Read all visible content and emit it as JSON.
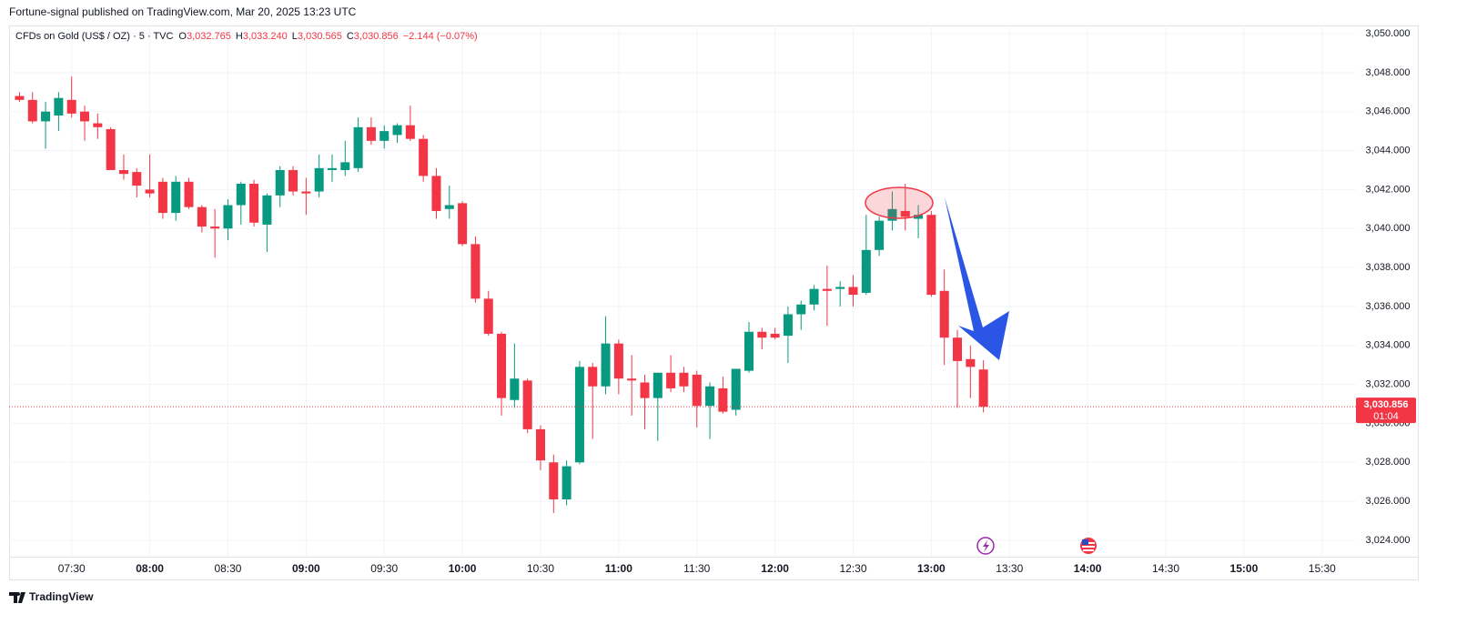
{
  "header": {
    "publisher": "Fortune-signal published on TradingView.com, Mar 20, 2025 13:23 UTC",
    "symbol": "CFDs on Gold (US$ / OZ) · 5 · TVC",
    "ohlc": [
      {
        "key": "O",
        "value": "3,032.765"
      },
      {
        "key": "H",
        "value": "3,033.240"
      },
      {
        "key": "L",
        "value": "3,030.565"
      },
      {
        "key": "C",
        "value": "3,030.856"
      }
    ],
    "change": "−2.144 (−0.07%)"
  },
  "footer": {
    "logo": "TradingView"
  },
  "chart_data": {
    "type": "candlestick",
    "up_color": "#089981",
    "down_color": "#f23645",
    "grid": true,
    "x": [
      "07:10",
      "07:15",
      "07:20",
      "07:25",
      "07:30",
      "07:35",
      "07:40",
      "07:45",
      "07:50",
      "07:55",
      "08:00",
      "08:05",
      "08:10",
      "08:15",
      "08:20",
      "08:25",
      "08:30",
      "08:35",
      "08:40",
      "08:45",
      "08:50",
      "08:55",
      "09:00",
      "09:05",
      "09:10",
      "09:15",
      "09:20",
      "09:25",
      "09:30",
      "09:35",
      "09:40",
      "09:45",
      "09:50",
      "09:55",
      "10:00",
      "10:05",
      "10:10",
      "10:15",
      "10:20",
      "10:25",
      "10:30",
      "10:35",
      "10:40",
      "10:45",
      "10:50",
      "10:55",
      "11:00",
      "11:05",
      "11:10",
      "11:15",
      "11:20",
      "11:25",
      "11:30",
      "11:35",
      "11:40",
      "11:45",
      "11:50",
      "11:55",
      "12:00",
      "12:05",
      "12:10",
      "12:15",
      "12:20",
      "12:25",
      "12:30",
      "12:35",
      "12:40",
      "12:45",
      "12:50",
      "12:55",
      "13:00",
      "13:05",
      "13:10",
      "13:15",
      "13:20"
    ],
    "open": [
      3046.8,
      3046.6,
      3045.5,
      3045.8,
      3046.6,
      3046.0,
      3045.4,
      3045.1,
      3043.0,
      3042.9,
      3042.0,
      3042.4,
      3040.8,
      3042.4,
      3041.1,
      3040.1,
      3040.0,
      3041.2,
      3042.3,
      3040.2,
      3041.7,
      3043.0,
      3041.9,
      3041.9,
      3043.0,
      3043.0,
      3043.1,
      3045.2,
      3044.5,
      3044.8,
      3045.3,
      3044.6,
      3042.7,
      3041.0,
      3041.3,
      3039.2,
      3036.4,
      3034.6,
      3031.2,
      3032.2,
      3029.7,
      3028.0,
      3026.1,
      3028.0,
      3032.9,
      3031.9,
      3034.1,
      3032.3,
      3032.1,
      3031.3,
      3032.6,
      3032.6,
      3032.5,
      3030.9,
      3031.8,
      3030.7,
      3032.7,
      3034.7,
      3034.6,
      3034.5,
      3035.6,
      3036.1,
      3036.9,
      3036.9,
      3037.0,
      3036.7,
      3038.9,
      3040.4,
      3040.9,
      3040.5,
      3040.7,
      3036.8,
      3034.4,
      3033.3,
      3032.765
    ],
    "high": [
      3047.0,
      3047.0,
      3046.5,
      3047.0,
      3047.8,
      3046.3,
      3045.9,
      3045.2,
      3043.8,
      3043.1,
      3043.8,
      3042.6,
      3042.7,
      3042.6,
      3041.2,
      3041.0,
      3041.5,
      3042.4,
      3042.5,
      3041.8,
      3043.2,
      3043.2,
      3042.6,
      3043.8,
      3043.8,
      3044.5,
      3045.7,
      3045.7,
      3045.3,
      3045.4,
      3046.3,
      3044.8,
      3043.1,
      3042.2,
      3041.4,
      3039.6,
      3036.8,
      3034.7,
      3034.1,
      3032.3,
      3029.9,
      3028.4,
      3028.1,
      3033.2,
      3033.1,
      3035.5,
      3034.3,
      3033.5,
      3032.5,
      3032.6,
      3033.5,
      3032.9,
      3032.7,
      3032.1,
      3032.4,
      3032.8,
      3035.2,
      3034.9,
      3034.9,
      3036.0,
      3036.3,
      3037.1,
      3038.1,
      3037.3,
      3037.6,
      3040.7,
      3040.6,
      3041.9,
      3042.3,
      3041.2,
      3040.9,
      3037.9,
      3034.8,
      3034.0,
      3033.24
    ],
    "low": [
      3046.5,
      3045.4,
      3044.1,
      3045.0,
      3045.7,
      3044.5,
      3044.6,
      3043.0,
      3042.5,
      3041.6,
      3041.6,
      3040.5,
      3040.4,
      3041.0,
      3039.8,
      3038.5,
      3039.4,
      3040.2,
      3040.1,
      3038.8,
      3041.1,
      3041.7,
      3040.7,
      3041.6,
      3042.4,
      3042.7,
      3042.9,
      3044.3,
      3044.1,
      3044.4,
      3044.5,
      3042.4,
      3040.5,
      3040.5,
      3039.1,
      3036.2,
      3034.5,
      3030.4,
      3030.8,
      3029.5,
      3027.6,
      3025.4,
      3025.8,
      3027.9,
      3029.2,
      3031.5,
      3031.5,
      3030.4,
      3029.7,
      3029.1,
      3031.6,
      3031.6,
      3029.8,
      3029.2,
      3030.5,
      3030.4,
      3032.6,
      3033.8,
      3034.3,
      3033.1,
      3034.8,
      3035.8,
      3035.0,
      3036.0,
      3036.0,
      3036.6,
      3038.6,
      3039.9,
      3039.9,
      3039.5,
      3036.5,
      3033.0,
      3030.8,
      3031.3,
      3030.565
    ],
    "close": [
      3046.6,
      3045.5,
      3046.0,
      3046.7,
      3045.9,
      3045.5,
      3045.2,
      3043.0,
      3042.8,
      3042.2,
      3041.8,
      3040.8,
      3042.4,
      3041.1,
      3040.1,
      3040.0,
      3041.2,
      3042.3,
      3040.3,
      3041.7,
      3043.0,
      3041.9,
      3041.8,
      3043.1,
      3043.1,
      3043.4,
      3045.2,
      3044.5,
      3045.0,
      3045.3,
      3044.6,
      3042.7,
      3040.9,
      3041.2,
      3039.2,
      3036.4,
      3034.6,
      3031.3,
      3032.3,
      3029.7,
      3028.1,
      3026.1,
      3027.8,
      3032.9,
      3031.9,
      3034.1,
      3032.3,
      3032.2,
      3031.3,
      3032.6,
      3031.8,
      3031.9,
      3030.9,
      3031.9,
      3030.6,
      3032.8,
      3034.7,
      3034.4,
      3034.4,
      3035.6,
      3036.1,
      3036.9,
      3036.8,
      3037.0,
      3036.6,
      3038.9,
      3040.4,
      3041.0,
      3040.6,
      3040.7,
      3036.6,
      3034.4,
      3033.2,
      3032.9,
      3030.856
    ],
    "xlim": [
      "07:06",
      "15:43"
    ],
    "xticks": [
      "07:30",
      "08:00",
      "08:30",
      "09:00",
      "09:30",
      "10:00",
      "10:30",
      "11:00",
      "11:30",
      "12:00",
      "12:30",
      "13:00",
      "13:30",
      "14:00",
      "14:30",
      "15:00",
      "15:30"
    ],
    "ylim": [
      3023.16,
      3050.42
    ],
    "yticks": [
      {
        "value": 3024,
        "label": "3,024.000"
      },
      {
        "value": 3026,
        "label": "3,026.000"
      },
      {
        "value": 3028,
        "label": "3,028.000"
      },
      {
        "value": 3030,
        "label": "3,030.000"
      },
      {
        "value": 3032,
        "label": "3,032.000"
      },
      {
        "value": 3034,
        "label": "3,034.000"
      },
      {
        "value": 3036,
        "label": "3,036.000"
      },
      {
        "value": 3038,
        "label": "3,038.000"
      },
      {
        "value": 3040,
        "label": "3,040.000"
      },
      {
        "value": 3042,
        "label": "3,042.000"
      },
      {
        "value": 3044,
        "label": "3,044.000"
      },
      {
        "value": 3046,
        "label": "3,046.000"
      },
      {
        "value": 3048,
        "label": "3,048.000"
      },
      {
        "value": 3050,
        "label": "3,050.000"
      }
    ],
    "price_label": "3,030.856",
    "countdown": "01:04"
  }
}
